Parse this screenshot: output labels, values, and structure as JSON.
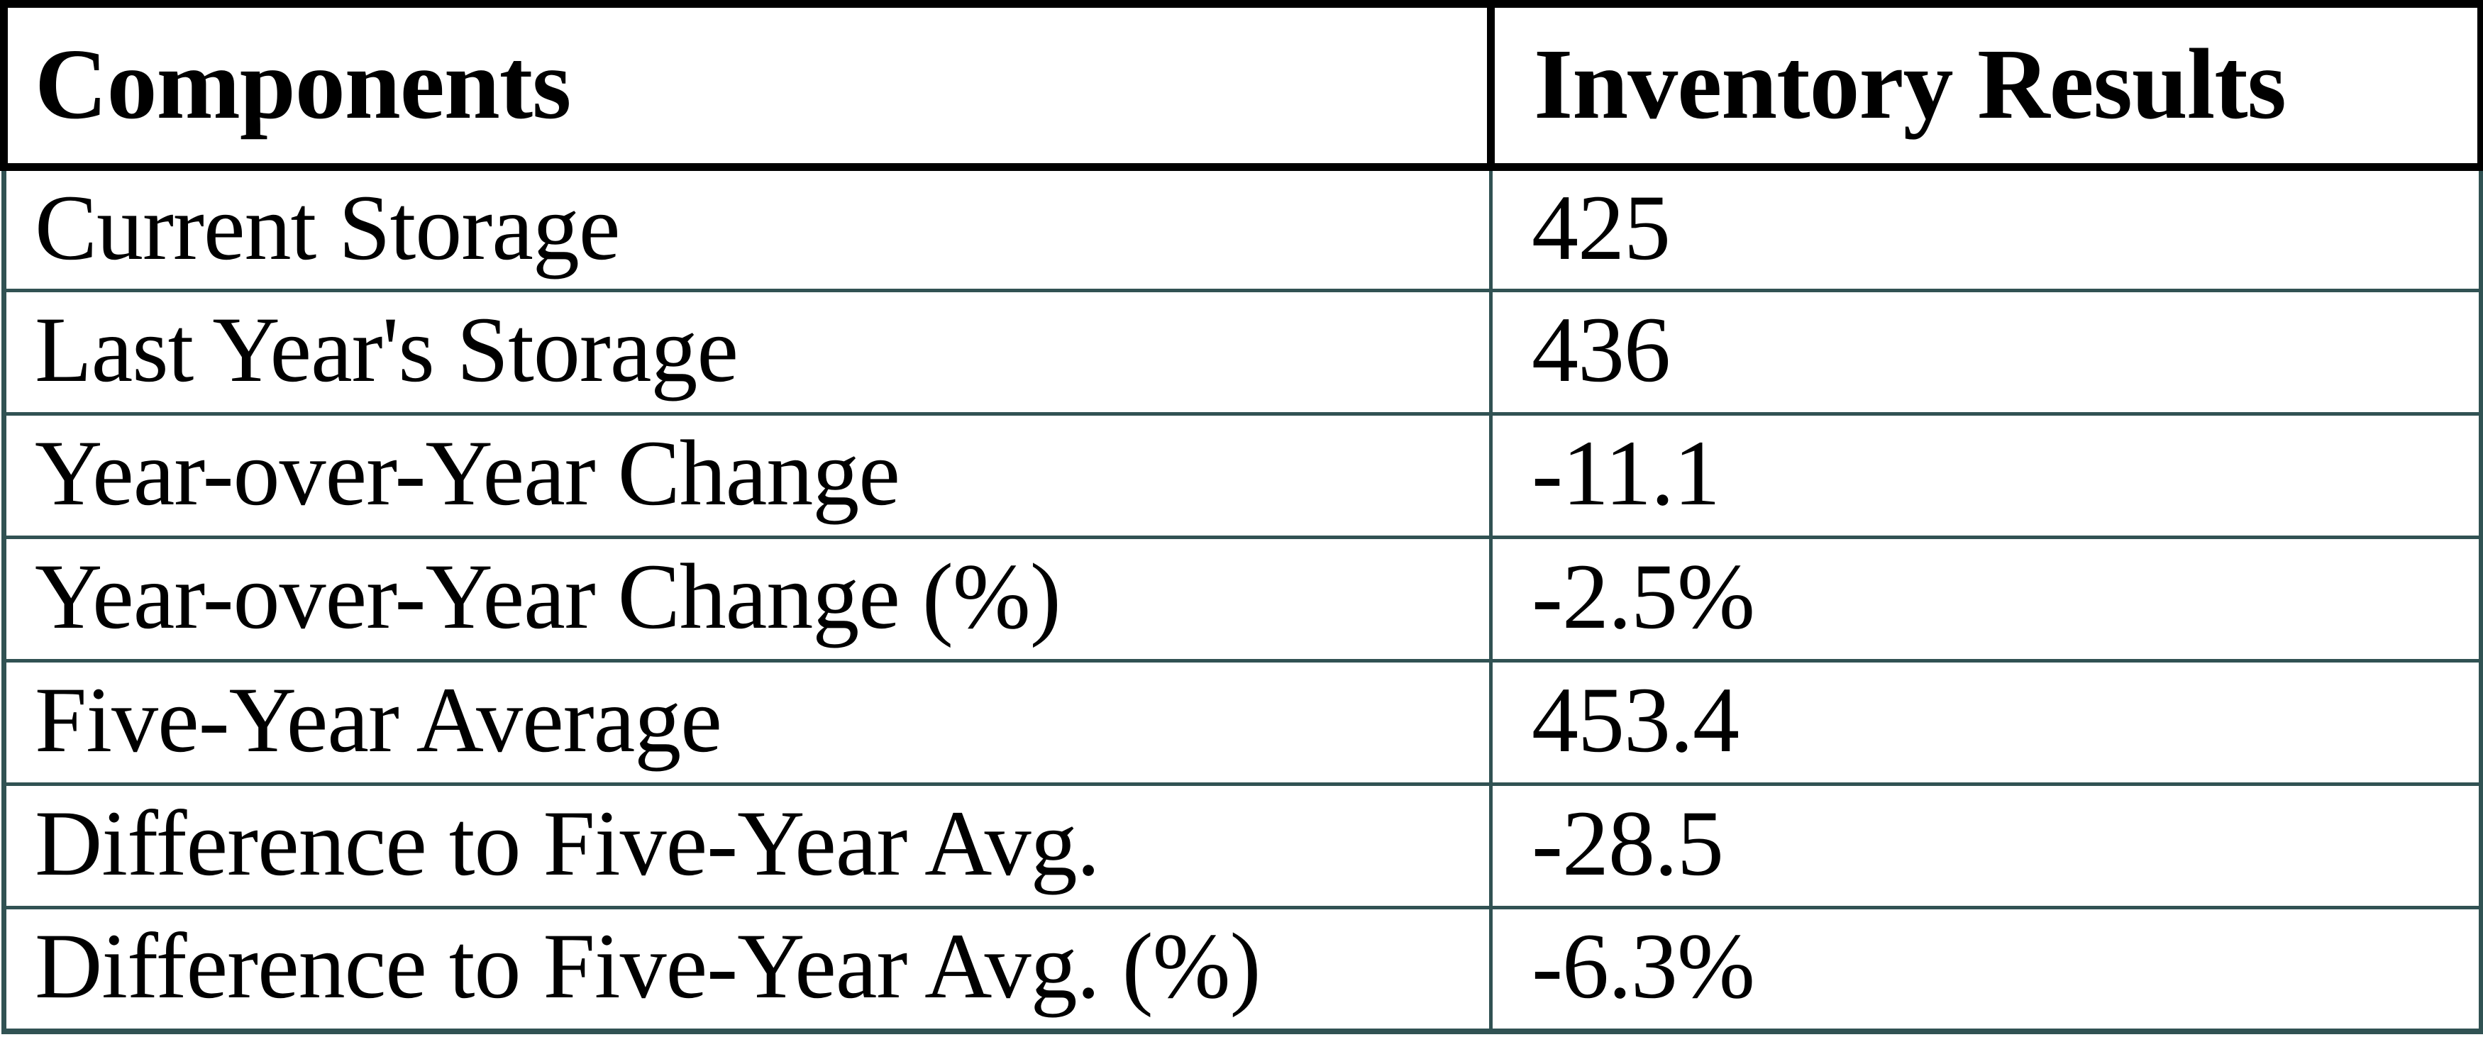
{
  "colors": {
    "background": "#ffffff",
    "header_border": "#000000",
    "body_border": "#315253",
    "text": "#000000"
  },
  "chart_data": {
    "type": "table",
    "title": "Inventory results table",
    "columns": [
      "Components",
      "Inventory Results"
    ],
    "rows": [
      {
        "component": "Current Storage",
        "value": "425"
      },
      {
        "component": "Last Year's Storage",
        "value": "436"
      },
      {
        "component": "Year-over-Year Change",
        "value": "-11.1"
      },
      {
        "component": "Year-over-Year Change (%)",
        "value": "-2.5%"
      },
      {
        "component": "Five-Year Average",
        "value": "453.4"
      },
      {
        "component": "Difference to Five-Year Avg.",
        "value": "-28.5"
      },
      {
        "component": "Difference to Five-Year Avg. (%)",
        "value": "-6.3%"
      }
    ]
  }
}
